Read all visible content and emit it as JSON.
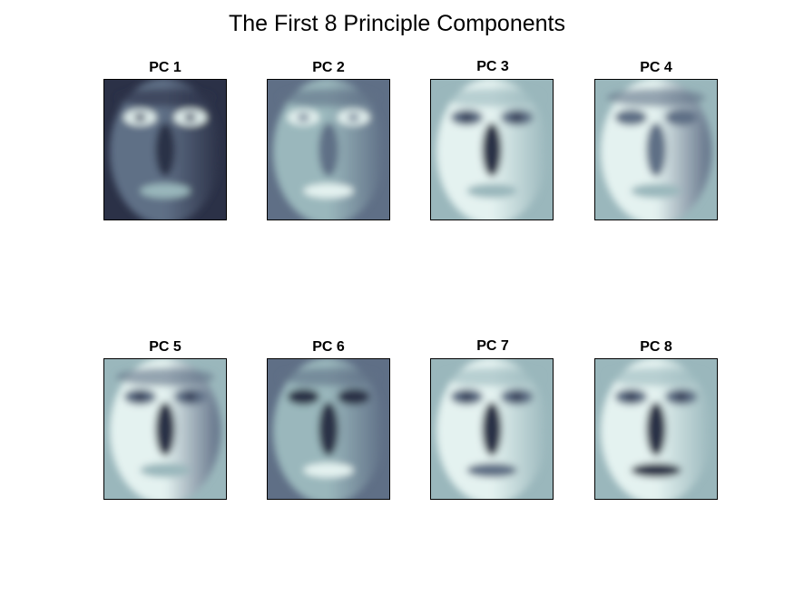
{
  "chart_data": {
    "type": "image-grid",
    "title": "The First 8 Principle Components",
    "colormap": [
      "#2b3147",
      "#5f6f86",
      "#9ab7bc",
      "#e4f2f0"
    ],
    "panels": [
      {
        "label": "PC 1",
        "tone": "dark"
      },
      {
        "label": "PC 2",
        "tone": "medium"
      },
      {
        "label": "PC 3",
        "tone": "light-dark-nose"
      },
      {
        "label": "PC 4",
        "tone": "light-right-shadow"
      },
      {
        "label": "PC 5",
        "tone": "split"
      },
      {
        "label": "PC 6",
        "tone": "split-dark"
      },
      {
        "label": "PC 7",
        "tone": "light-dark-center"
      },
      {
        "label": "PC 8",
        "tone": "light-dark-mouth"
      }
    ]
  }
}
